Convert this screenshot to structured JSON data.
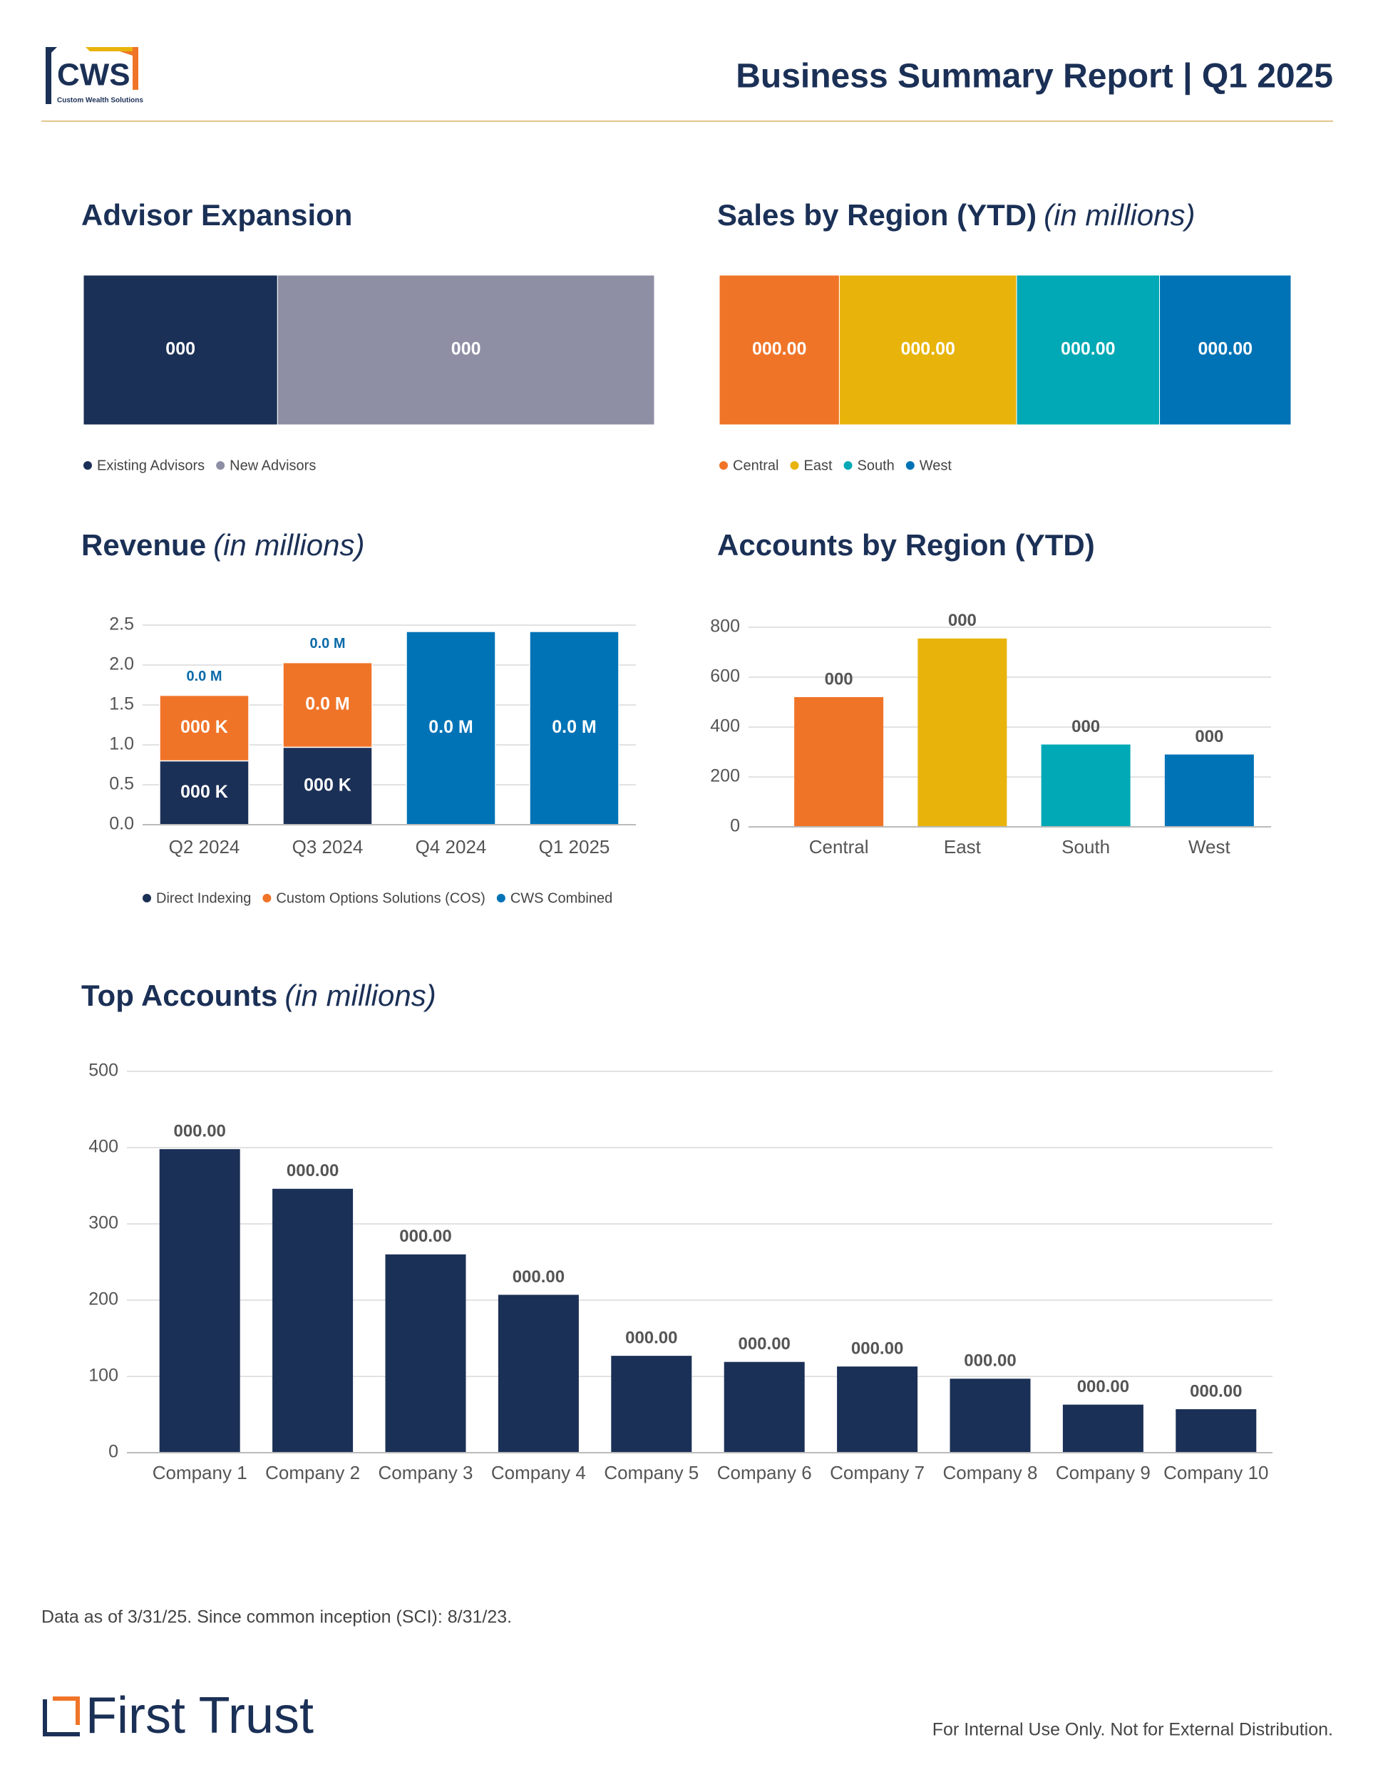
{
  "header": {
    "logo_text": "CWS",
    "logo_tagline": "Custom Wealth Solutions",
    "title": "Business Summary Report | Q1 2025"
  },
  "chart_data": [
    {
      "type": "stacked_hbar",
      "title": "Advisor Expansion",
      "xlim": [
        0,
        100
      ],
      "series": [
        {
          "name": "Existing Advisors",
          "color": "#1b3056",
          "values": [
            34
          ],
          "value_labels": [
            "000"
          ]
        },
        {
          "name": "New Advisors",
          "color": "#8e8fa5",
          "values": [
            66
          ],
          "value_labels": [
            "000"
          ]
        }
      ]
    },
    {
      "type": "stacked_hbar",
      "title": "Sales by Region (YTD)",
      "subtitle": "(in millions)",
      "xlim": [
        0,
        100
      ],
      "series": [
        {
          "name": "Central",
          "color": "#f07428",
          "values": [
            21
          ],
          "value_labels": [
            "000.00"
          ]
        },
        {
          "name": "East",
          "color": "#e8b40c",
          "values": [
            31
          ],
          "value_labels": [
            "000.00"
          ]
        },
        {
          "name": "South",
          "color": "#00a9b5",
          "values": [
            25
          ],
          "value_labels": [
            "000.00"
          ]
        },
        {
          "name": "West",
          "color": "#0073b6",
          "values": [
            23
          ],
          "value_labels": [
            "000.00"
          ]
        }
      ]
    },
    {
      "type": "stacked_bar",
      "title": "Revenue",
      "subtitle": "(in millions)",
      "categories": [
        "Q2 2024",
        "Q3 2024",
        "Q4 2024",
        "Q1 2025"
      ],
      "ylim": [
        0,
        2.5
      ],
      "yticks": [
        {
          "value": 0,
          "label": "0.0"
        },
        0.5,
        {
          "value": 1,
          "label": "1.0"
        },
        1.5,
        {
          "value": 2,
          "label": "2.0"
        },
        2.5
      ],
      "grid": true,
      "series": [
        {
          "name": "Direct Indexing",
          "color": "#1b3056",
          "values": [
            0.8,
            0.97,
            null,
            null
          ],
          "value_labels": [
            "000 K",
            "000 K",
            null,
            null
          ]
        },
        {
          "name": "Custom Options Solutions (COS)",
          "color": "#f07428",
          "values": [
            0.82,
            1.06,
            null,
            null
          ],
          "value_labels": [
            "000 K",
            "0.0 M",
            null,
            null
          ]
        },
        {
          "name": "CWS Combined",
          "color": "#0073b6",
          "values": [
            null,
            null,
            2.42,
            2.42
          ],
          "value_labels": [
            null,
            null,
            "0.0 M",
            "0.0 M"
          ]
        }
      ],
      "total_labels": [
        "0.0 M",
        "0.0 M",
        null,
        null
      ]
    },
    {
      "type": "bar",
      "title": "Accounts by Region (YTD)",
      "categories": [
        "Central",
        "East",
        "South",
        "West"
      ],
      "values": [
        520,
        755,
        330,
        290
      ],
      "value_labels": [
        "000",
        "000",
        "000",
        "000"
      ],
      "colors": [
        "#f07428",
        "#e8b40c",
        "#00a9b5",
        "#0073b6"
      ],
      "ylim": [
        0,
        800
      ],
      "yticks": [
        0,
        200,
        400,
        600,
        800
      ],
      "grid": true
    },
    {
      "type": "bar",
      "title": "Top Accounts",
      "subtitle": "(in millions)",
      "categories": [
        "Company 1",
        "Company 2",
        "Company 3",
        "Company 4",
        "Company 5",
        "Company 6",
        "Company 7",
        "Company 8",
        "Company 9",
        "Company 10"
      ],
      "values": [
        398,
        346,
        260,
        207,
        127,
        119,
        113,
        97,
        63,
        57
      ],
      "value_labels": [
        "000.00",
        "000.00",
        "000.00",
        "000.00",
        "000.00",
        "000.00",
        "000.00",
        "000.00",
        "000.00",
        "000.00"
      ],
      "color": "#1b3056",
      "ylim": [
        0,
        500
      ],
      "yticks": [
        0,
        100,
        200,
        300,
        400,
        500
      ],
      "grid": true
    }
  ],
  "footer": {
    "note": "Data as of 3/31/25. Since common inception (SCI): 8/31/23.",
    "brand": "First Trust",
    "disclaimer": "For Internal Use Only. Not for External Distribution."
  }
}
